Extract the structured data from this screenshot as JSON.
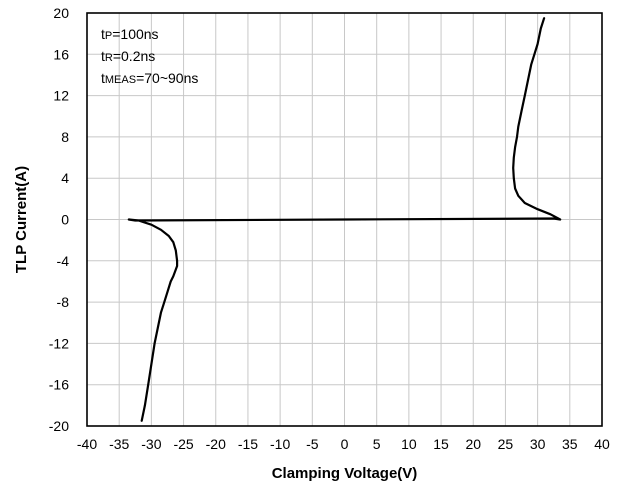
{
  "chart_data": {
    "type": "line",
    "title": "",
    "xlabel": "Clamping Voltage(V)",
    "ylabel": "TLP Current(A)",
    "xlim": [
      -40,
      40
    ],
    "ylim": [
      -20,
      20
    ],
    "x_ticks": [
      -40,
      -35,
      -30,
      -25,
      -20,
      -15,
      -10,
      -5,
      0,
      5,
      10,
      15,
      20,
      25,
      30,
      35,
      40
    ],
    "y_ticks": [
      -20,
      -16,
      -12,
      -8,
      -4,
      0,
      4,
      8,
      12,
      16,
      20
    ],
    "grid": true,
    "legend": "none",
    "annotations": [
      {
        "main": "t",
        "sub": "P",
        "rest": "=100ns"
      },
      {
        "main": "t",
        "sub": "R",
        "rest": "=0.2ns"
      },
      {
        "main": "t",
        "sub": "MEAS",
        "rest": "=70~90ns"
      }
    ],
    "series": [
      {
        "color": "#000000",
        "x": [
          -31.5,
          -31.0,
          -30.5,
          -30.0,
          -29.5,
          -29.0,
          -28.5,
          -28.0,
          -27.5,
          -27.0,
          -26.6,
          -26.3,
          -26.0,
          -26.0,
          -26.2,
          -26.6,
          -27.3,
          -28.5,
          -30.0,
          -32.0,
          -33.5,
          -32.5,
          0,
          32.5,
          33.5,
          32.0,
          30.0,
          28.0,
          27.0,
          26.5,
          26.3,
          26.2,
          26.3,
          26.5,
          26.8,
          27.0,
          27.5,
          28.0,
          28.5,
          29.0,
          29.5,
          30.0,
          30.5,
          31.0
        ],
        "y": [
          -19.5,
          -18.0,
          -16.0,
          -14.0,
          -12.0,
          -10.5,
          -9.0,
          -8.0,
          -7.0,
          -6.0,
          -5.5,
          -5.0,
          -4.5,
          -4.0,
          -3.0,
          -2.2,
          -1.6,
          -1.0,
          -0.5,
          -0.1,
          0.0,
          -0.1,
          0.0,
          0.1,
          0.0,
          0.5,
          1.0,
          1.6,
          2.3,
          3.0,
          4.0,
          5.0,
          6.0,
          7.0,
          8.0,
          9.0,
          10.5,
          12.0,
          13.5,
          15.0,
          16.0,
          17.0,
          18.5,
          19.5
        ]
      }
    ]
  }
}
